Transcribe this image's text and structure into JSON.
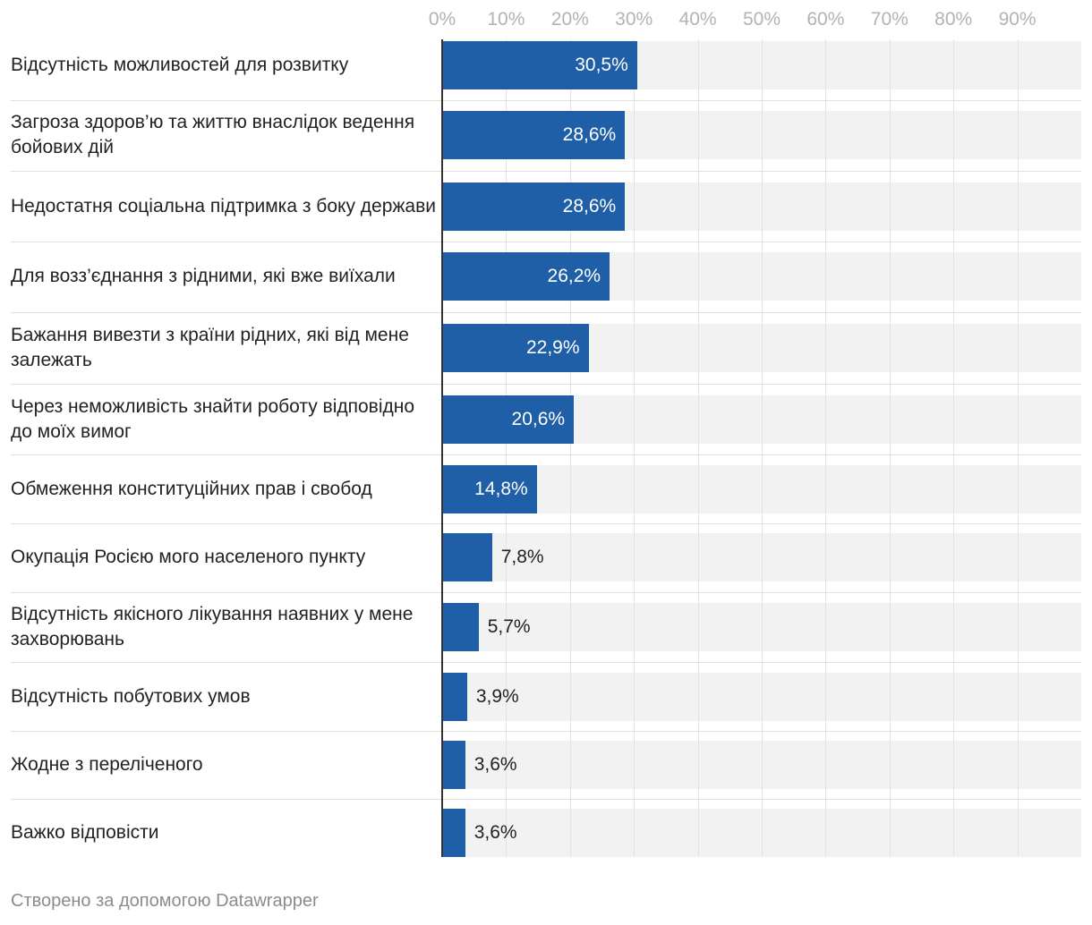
{
  "chart_data": {
    "type": "bar",
    "orientation": "horizontal",
    "x_ticks": [
      "0%",
      "10%",
      "20%",
      "30%",
      "40%",
      "50%",
      "60%",
      "70%",
      "80%",
      "90%"
    ],
    "xlim": [
      0,
      100
    ],
    "grid": true,
    "bar_color": "#1f5fa8",
    "background_color": "#f2f2f2",
    "categories": [
      "Відсутність можливостей для розвитку",
      "Загроза здоров’ю та життю внаслідок ведення бойових дій",
      "Недостатня соціальна підтримка з боку держави",
      "Для возз’єднання з рідними, які вже виїхали",
      "Бажання вивезти з країни рідних, які від мене залежать",
      "Через неможливість знайти роботу відповідно до моїх вимог",
      "Обмеження конституційних прав і свобод",
      "Окупація Росією мого населеного пункту",
      "Відсутність якісного лікування наявних у мене захворювань",
      "Відсутність побутових умов",
      "Жодне з переліченого",
      "Важко відповісти"
    ],
    "values": [
      30.5,
      28.6,
      28.6,
      26.2,
      22.9,
      20.6,
      14.8,
      7.8,
      5.7,
      3.9,
      3.6,
      3.6
    ],
    "value_labels": [
      "30,5%",
      "28,6%",
      "28,6%",
      "26,2%",
      "22,9%",
      "20,6%",
      "14,8%",
      "7,8%",
      "5,7%",
      "3,9%",
      "3,6%",
      "3,6%"
    ]
  },
  "footer": {
    "credit": "Створено за допомогою Datawrapper"
  }
}
